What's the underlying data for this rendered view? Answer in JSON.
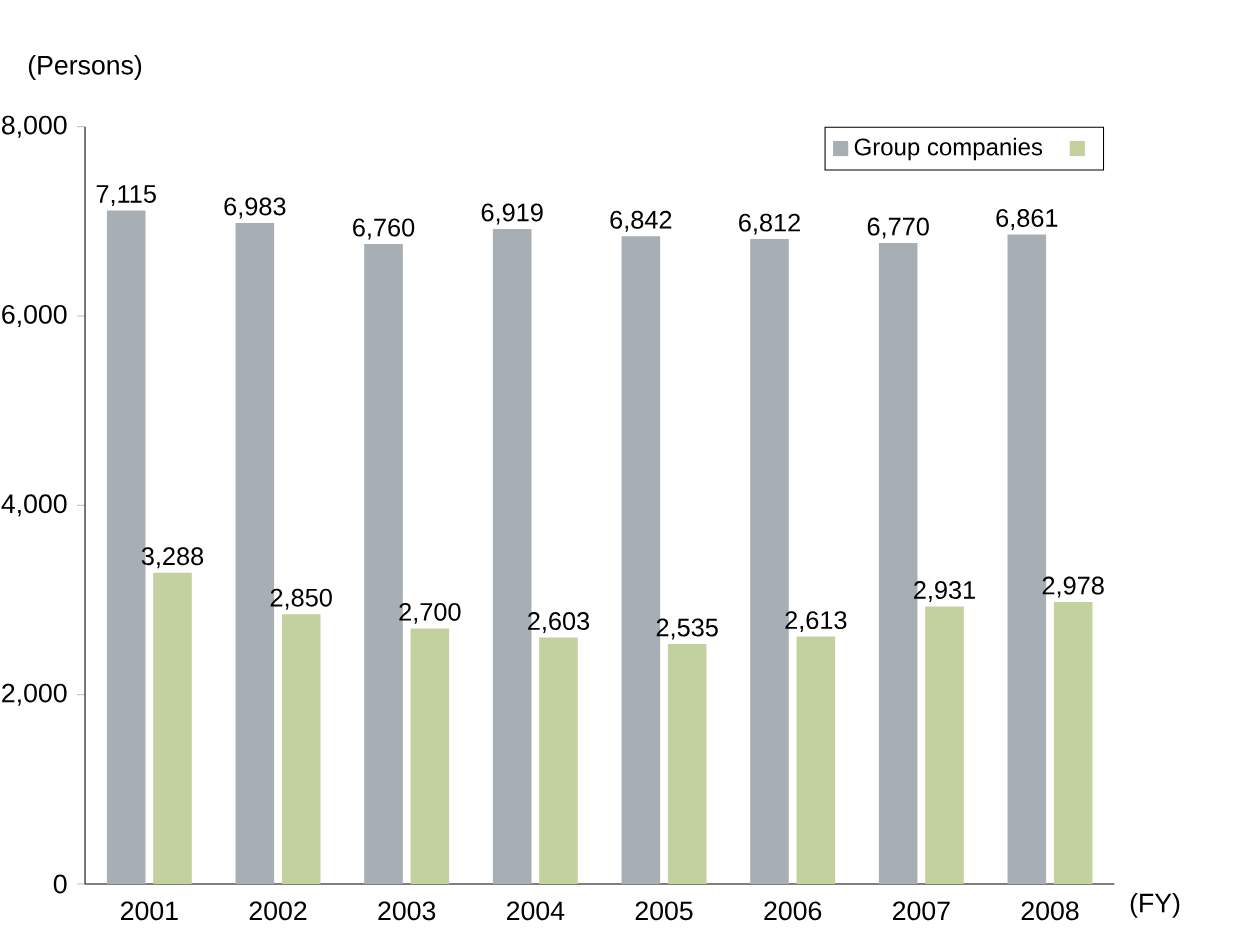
{
  "chart_data": {
    "type": "bar",
    "ylabel": "(Persons)",
    "xlabel": "(FY)",
    "categories": [
      "2001",
      "2002",
      "2003",
      "2004",
      "2005",
      "2006",
      "2007",
      "2008"
    ],
    "series": [
      {
        "name": "Group companies",
        "color": "#a7afb4",
        "values": [
          7115,
          6983,
          6760,
          6919,
          6842,
          6812,
          6770,
          6861
        ],
        "value_labels": [
          "7,115",
          "6,983",
          "6,760",
          "6,919",
          "6,842",
          "6,812",
          "6,770",
          "6,861"
        ]
      },
      {
        "color": "#c3d19e",
        "values": [
          3288,
          2850,
          2700,
          2603,
          2535,
          2613,
          2931,
          2978
        ],
        "value_labels": [
          "3,288",
          "2,850",
          "2,700",
          "2,603",
          "2,535",
          "2,613",
          "2,931",
          "2,978"
        ]
      }
    ],
    "ylim": [
      0,
      8000
    ],
    "yticks": [
      {
        "value": 0,
        "label": "0"
      },
      {
        "value": 2000,
        "label": "2,000"
      },
      {
        "value": 4000,
        "label": "4,000"
      },
      {
        "value": 6000,
        "label": "6,000"
      },
      {
        "value": 8000,
        "label": "8,000"
      }
    ],
    "legend": "top right",
    "grid": false
  }
}
